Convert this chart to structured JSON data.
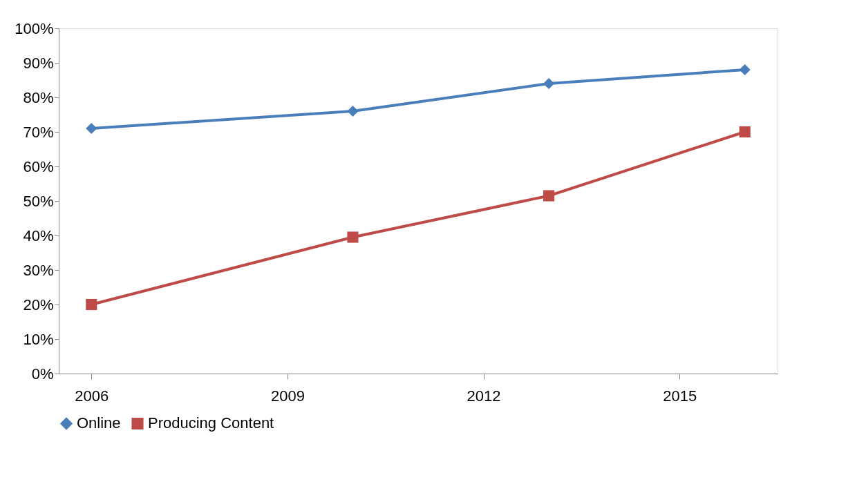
{
  "chart_data": {
    "type": "line",
    "x": [
      2006,
      2010,
      2013,
      2016
    ],
    "xlim": [
      2005.5,
      2016.5
    ],
    "xticks": [
      2006,
      2009,
      2012,
      2015
    ],
    "ylim": [
      0,
      100
    ],
    "yticks": [
      {
        "value": 0,
        "label": "0%"
      },
      {
        "value": 10,
        "label": "10%"
      },
      {
        "value": 20,
        "label": "20%"
      },
      {
        "value": 30,
        "label": "30%"
      },
      {
        "value": 40,
        "label": "40%"
      },
      {
        "value": 50,
        "label": "50%"
      },
      {
        "value": 60,
        "label": "60%"
      },
      {
        "value": 70,
        "label": "70%"
      },
      {
        "value": 80,
        "label": "80%"
      },
      {
        "value": 90,
        "label": "90%"
      },
      {
        "value": 100,
        "label": "100%"
      }
    ],
    "series": [
      {
        "name": "Online",
        "color": "#4a7ebb",
        "marker": "diamond",
        "values": [
          71,
          76,
          84,
          88
        ]
      },
      {
        "name": "Producing Content",
        "color": "#be4b48",
        "marker": "square",
        "values": [
          20,
          39.5,
          51.5,
          70
        ]
      }
    ],
    "line_style": "solid",
    "grid": false,
    "legend": "bottom"
  }
}
